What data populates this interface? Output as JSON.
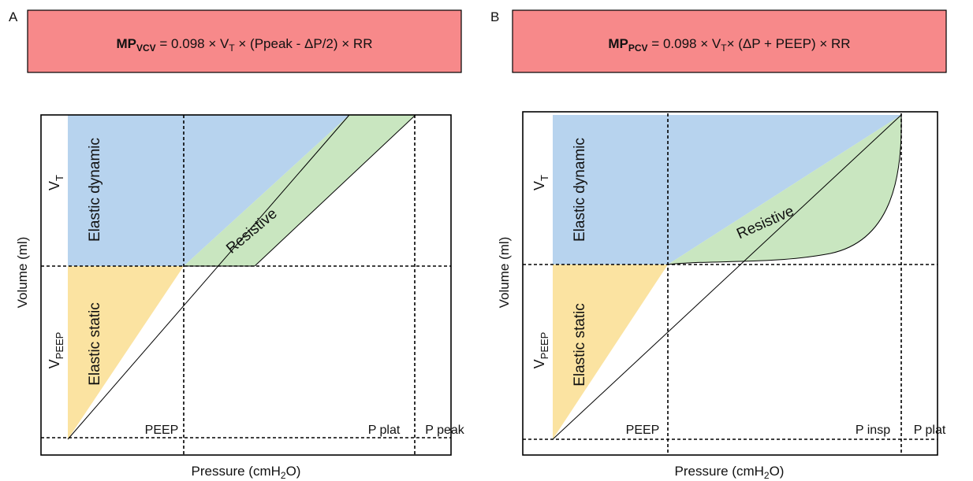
{
  "colors": {
    "formula_box": "#f7898a",
    "elastic_dynamic": "#b7d3ee",
    "elastic_static": "#fbe3a1",
    "resistive": "#c9e6c0"
  },
  "panels": [
    {
      "letter": "A",
      "formula": {
        "mp": "MP",
        "mp_sub": "VCV",
        "eq": " = 0.098 × V",
        "vt_sub": "T",
        "rest": " × (Ppeak - ΔP/2) × RR"
      },
      "regions": {
        "elastic_dynamic": "Elastic dynamic",
        "elastic_static": "Elastic static",
        "resistive": "Resistive"
      },
      "y_axis": "Volume (ml)",
      "x_axis": {
        "main": "Pressure (cmH",
        "sub": "2",
        "end": "O)"
      },
      "vt_label": {
        "main": "V",
        "sub": "T"
      },
      "vpeep_label": {
        "main": "V",
        "sub": "PEEP"
      },
      "ticks": {
        "peep": "PEEP",
        "middle": "P plat",
        "right": "P peak"
      }
    },
    {
      "letter": "B",
      "formula": {
        "mp": "MP",
        "mp_sub": "PCV",
        "eq": " = 0.098 × V",
        "vt_sub": "T",
        "rest": "× (ΔP + PEEP) × RR"
      },
      "regions": {
        "elastic_dynamic": "Elastic dynamic",
        "elastic_static": "Elastic static",
        "resistive": "Resistive"
      },
      "y_axis": "Volume (ml)",
      "x_axis": {
        "main": "Pressure (cmH",
        "sub": "2",
        "end": "O)"
      },
      "vt_label": {
        "main": "V",
        "sub": "T"
      },
      "vpeep_label": {
        "main": "V",
        "sub": "PEEP"
      },
      "ticks": {
        "peep": "PEEP",
        "middle": "P insp",
        "right": "P plat"
      }
    }
  ]
}
